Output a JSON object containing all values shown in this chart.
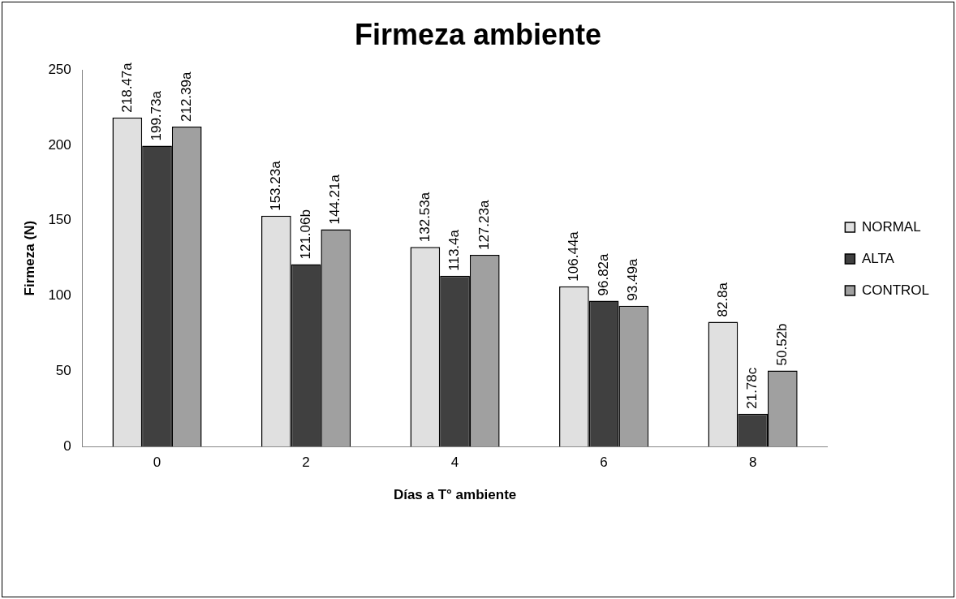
{
  "chart_data": {
    "type": "bar",
    "title": "Firmeza ambiente",
    "xlabel": "Días a T° ambiente",
    "ylabel": "Firmeza (N)",
    "categories": [
      "0",
      "2",
      "4",
      "6",
      "8"
    ],
    "series": [
      {
        "name": "NORMAL",
        "color": "#e0e0e0",
        "values": [
          218.47,
          153.23,
          132.53,
          106.44,
          82.8
        ],
        "value_labels": [
          "218.47a",
          "153.23a",
          "132.53a",
          "106.44a",
          "82.8a"
        ]
      },
      {
        "name": "ALTA",
        "color": "#404040",
        "values": [
          199.73,
          121.06,
          113.4,
          96.82,
          21.78
        ],
        "value_labels": [
          "199.73a",
          "121.06b",
          "113.4a",
          "96.82a",
          "21.78c"
        ]
      },
      {
        "name": "CONTROL",
        "color": "#a0a0a0",
        "values": [
          212.39,
          144.21,
          127.23,
          93.49,
          50.52
        ],
        "value_labels": [
          "212.39a",
          "144.21a",
          "127.23a",
          "93.49a",
          "50.52b"
        ]
      }
    ],
    "ylim": [
      0,
      250
    ],
    "yticks": [
      0,
      50,
      100,
      150,
      200,
      250
    ],
    "grid": false,
    "legend": "right"
  }
}
